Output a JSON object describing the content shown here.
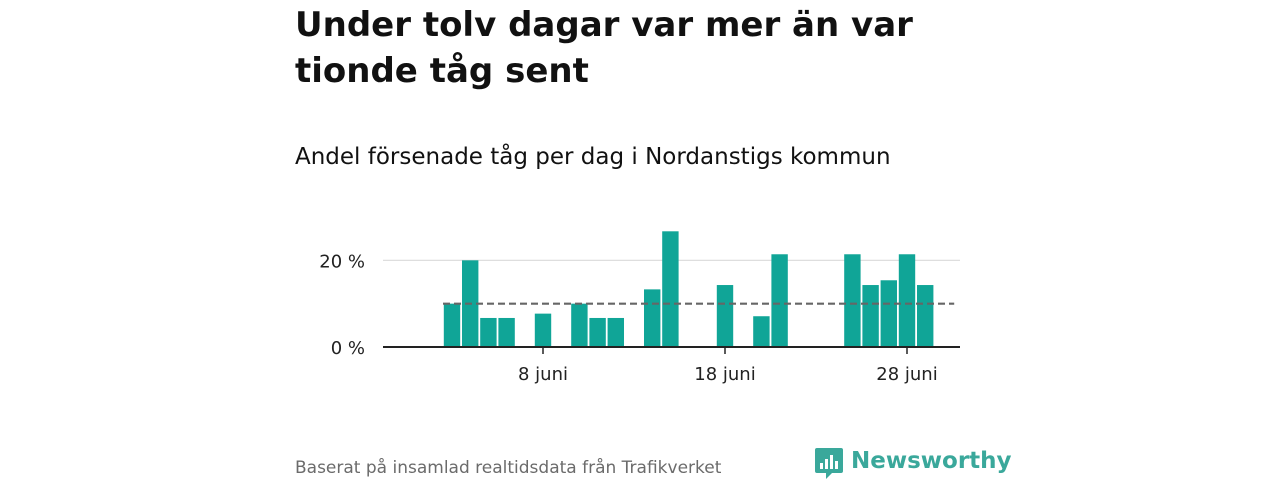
{
  "title": "Under tolv dagar var mer än var tionde tåg sent",
  "subtitle": "Andel försenade tåg per dag i Nordanstigs kommun",
  "source": "Baserat på insamlad realtidsdata från Trafikverket",
  "brand": {
    "name": "Newsworthy",
    "logo_icon": "newsworthy-bar-chart-icon"
  },
  "colors": {
    "bar": "#10a597",
    "brand": "#3aa89b",
    "reference_line": "#666666",
    "gridline": "#d9d9d9",
    "axis": "#222222",
    "source_text": "#6b6b6b"
  },
  "chart_data": {
    "type": "bar",
    "x_unit": "day of June",
    "x_ticks": [
      {
        "day": 8,
        "label": "8 juni"
      },
      {
        "day": 18,
        "label": "18 juni"
      },
      {
        "day": 28,
        "label": "28 juni"
      }
    ],
    "y_ticks": [
      {
        "value": 0,
        "label": "0 %"
      },
      {
        "value": 20,
        "label": "20 %"
      }
    ],
    "ylim": [
      0,
      30
    ],
    "grid": true,
    "reference_line": {
      "value": 10,
      "style": "dashed"
    },
    "bars": [
      {
        "day": 3,
        "value": 10
      },
      {
        "day": 4,
        "value": 20
      },
      {
        "day": 5,
        "value": 6.7
      },
      {
        "day": 6,
        "value": 6.7
      },
      {
        "day": 7,
        "value": null
      },
      {
        "day": 8,
        "value": 7.7
      },
      {
        "day": 9,
        "value": null
      },
      {
        "day": 10,
        "value": 10
      },
      {
        "day": 11,
        "value": 6.7
      },
      {
        "day": 12,
        "value": 6.7
      },
      {
        "day": 13,
        "value": null
      },
      {
        "day": 14,
        "value": 13.3
      },
      {
        "day": 15,
        "value": 26.7
      },
      {
        "day": 16,
        "value": null
      },
      {
        "day": 17,
        "value": null
      },
      {
        "day": 18,
        "value": 14.3
      },
      {
        "day": 19,
        "value": null
      },
      {
        "day": 20,
        "value": 7.1
      },
      {
        "day": 21,
        "value": 21.4
      },
      {
        "day": 22,
        "value": null
      },
      {
        "day": 23,
        "value": null
      },
      {
        "day": 24,
        "value": null
      },
      {
        "day": 25,
        "value": 21.4
      },
      {
        "day": 26,
        "value": 14.3
      },
      {
        "day": 27,
        "value": 15.4
      },
      {
        "day": 28,
        "value": 21.4
      },
      {
        "day": 29,
        "value": 14.3
      }
    ]
  }
}
